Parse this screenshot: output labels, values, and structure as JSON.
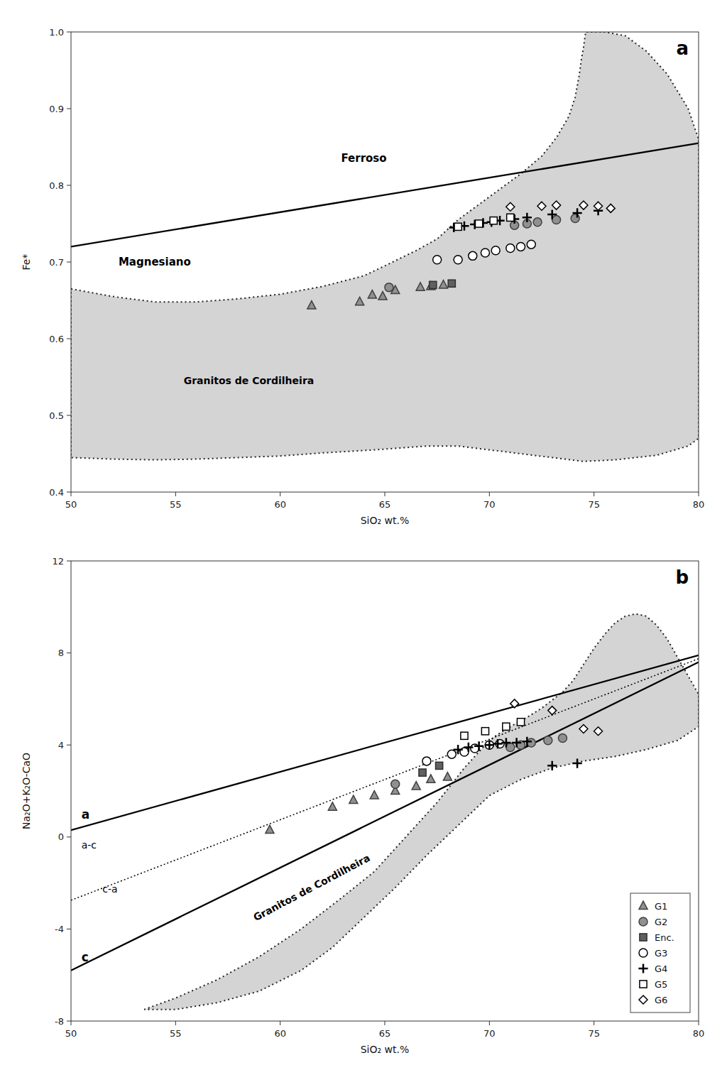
{
  "chart_data": [
    {
      "type": "scatter",
      "title": "a",
      "xlabel": "SiO₂ wt.%",
      "ylabel": "Fe*",
      "xlim": [
        50.0,
        80.0
      ],
      "ylim": [
        0.4,
        1.0
      ],
      "xticks": [
        50,
        55,
        60,
        65,
        70,
        75,
        80
      ],
      "yticks": [
        0.4,
        0.5,
        0.6,
        0.7,
        0.8,
        0.9,
        {
          "value": 1.0,
          "label": "1.0"
        }
      ],
      "grid": false,
      "regions": [
        {
          "name": "Granitos de Cordilheira",
          "label_x": 58.5,
          "label_y": 0.545,
          "color": "#d4d4d4",
          "line_style": "dotted",
          "points": [
            [
              50.0,
              0.665
            ],
            [
              52.0,
              0.655
            ],
            [
              54.0,
              0.648
            ],
            [
              56.0,
              0.648
            ],
            [
              58.0,
              0.652
            ],
            [
              60.0,
              0.658
            ],
            [
              62.0,
              0.668
            ],
            [
              64.0,
              0.682
            ],
            [
              65.0,
              0.695
            ],
            [
              66.5,
              0.715
            ],
            [
              67.5,
              0.73
            ],
            [
              68.5,
              0.755
            ],
            [
              69.5,
              0.775
            ],
            [
              70.5,
              0.795
            ],
            [
              71.5,
              0.815
            ],
            [
              72.5,
              0.838
            ],
            [
              73.2,
              0.862
            ],
            [
              73.8,
              0.89
            ],
            [
              74.1,
              0.915
            ],
            [
              74.3,
              0.945
            ],
            [
              74.4,
              0.965
            ],
            [
              74.5,
              0.98
            ],
            [
              74.6,
              1.0
            ],
            [
              75.5,
              1.0
            ],
            [
              76.5,
              0.995
            ],
            [
              77.5,
              0.975
            ],
            [
              78.5,
              0.945
            ],
            [
              79.5,
              0.9
            ],
            [
              80.0,
              0.86
            ],
            [
              80.0,
              0.47
            ],
            [
              80.0,
              0.47
            ],
            [
              79.5,
              0.46
            ],
            [
              78.0,
              0.448
            ],
            [
              76.0,
              0.442
            ],
            [
              74.5,
              0.44
            ],
            [
              73.0,
              0.445
            ],
            [
              71.5,
              0.45
            ],
            [
              70.0,
              0.455
            ],
            [
              68.5,
              0.46
            ],
            [
              67.0,
              0.46
            ],
            [
              64.5,
              0.455
            ],
            [
              62.0,
              0.451
            ],
            [
              60.0,
              0.447
            ],
            [
              58.0,
              0.445
            ],
            [
              56.0,
              0.443
            ],
            [
              54.0,
              0.442
            ],
            [
              52.0,
              0.443
            ],
            [
              50.0,
              0.445
            ]
          ]
        }
      ],
      "lines": [
        {
          "line_style": "solid",
          "points": [
            [
              50,
              0.72
            ],
            [
              80,
              0.855
            ]
          ]
        }
      ],
      "annotations": [
        {
          "text": "Ferroso",
          "x": 64.0,
          "y": 0.835
        },
        {
          "text": "Magnesiano",
          "x": 54.0,
          "y": 0.7
        }
      ],
      "series": [
        {
          "name": "G1",
          "marker": "triangle",
          "color": "#909090",
          "x": [
            61.5,
            63.8,
            64.4,
            64.9,
            65.5,
            66.7,
            67.2,
            67.8
          ],
          "values": [
            0.643,
            0.648,
            0.657,
            0.655,
            0.663,
            0.667,
            0.668,
            0.67
          ]
        },
        {
          "name": "G2",
          "marker": "circle",
          "color": "#909090",
          "x": [
            65.2,
            71.2,
            71.8,
            72.3,
            73.2,
            74.1
          ],
          "values": [
            0.667,
            0.748,
            0.75,
            0.752,
            0.755,
            0.757
          ]
        },
        {
          "name": "Enc.",
          "marker": "square",
          "color": "#606060",
          "x": [
            67.3,
            68.2
          ],
          "values": [
            0.67,
            0.672
          ]
        },
        {
          "name": "G3",
          "marker": "circle",
          "color": "#ffffff",
          "x": [
            67.5,
            68.5,
            69.2,
            69.8,
            70.3,
            71.0,
            71.5,
            72.0
          ],
          "values": [
            0.703,
            0.703,
            0.708,
            0.712,
            0.715,
            0.718,
            0.72,
            0.723
          ]
        },
        {
          "name": "G4",
          "marker": "plus",
          "color": "#000000",
          "x": [
            68.3,
            68.8,
            69.3,
            69.7,
            70.1,
            70.5,
            71.2,
            71.8,
            73.0,
            74.2,
            75.2
          ],
          "values": [
            0.745,
            0.747,
            0.749,
            0.751,
            0.752,
            0.754,
            0.756,
            0.758,
            0.762,
            0.764,
            0.767
          ]
        },
        {
          "name": "G5",
          "marker": "square",
          "color": "#ffffff",
          "x": [
            68.5,
            69.5,
            70.2,
            71.0
          ],
          "values": [
            0.746,
            0.75,
            0.754,
            0.758
          ]
        },
        {
          "name": "G6",
          "marker": "diamond",
          "color": "#ffffff",
          "x": [
            71.0,
            72.5,
            73.2,
            74.5,
            75.2,
            75.8
          ],
          "values": [
            0.772,
            0.773,
            0.774,
            0.774,
            0.773,
            0.77
          ]
        }
      ]
    },
    {
      "type": "scatter",
      "title": "b",
      "xlabel": "SiO₂ wt.%",
      "ylabel": "Na₂O+K₂O-CaO",
      "xlim": [
        50.0,
        80.0
      ],
      "ylim": [
        -8.0,
        12.0
      ],
      "xticks": [
        50,
        55,
        60,
        65,
        70,
        75,
        80
      ],
      "yticks": [
        -8,
        -4,
        0,
        4,
        8,
        12
      ],
      "grid": false,
      "legend": "lower right",
      "regions": [
        {
          "name": "Granitos de Cordilheira",
          "label_x": 61.5,
          "label_y": -2.2,
          "color": "#d4d4d4",
          "line_style": "dotted",
          "points": [
            [
              53.5,
              -7.5
            ],
            [
              55.0,
              -7.0
            ],
            [
              57.0,
              -6.2
            ],
            [
              59.0,
              -5.2
            ],
            [
              61.0,
              -4.0
            ],
            [
              63.0,
              -2.6
            ],
            [
              64.5,
              -1.5
            ],
            [
              65.5,
              -0.5
            ],
            [
              66.5,
              0.5
            ],
            [
              67.5,
              1.5
            ],
            [
              68.2,
              2.3
            ],
            [
              68.8,
              3.0
            ],
            [
              69.3,
              3.5
            ],
            [
              69.8,
              4.0
            ],
            [
              70.3,
              4.4
            ],
            [
              71.0,
              4.8
            ],
            [
              71.8,
              5.2
            ],
            [
              72.5,
              5.6
            ],
            [
              73.5,
              6.3
            ],
            [
              74.0,
              6.8
            ],
            [
              74.5,
              7.5
            ],
            [
              75.0,
              8.2
            ],
            [
              75.5,
              8.8
            ],
            [
              76.0,
              9.3
            ],
            [
              76.5,
              9.6
            ],
            [
              77.0,
              9.7
            ],
            [
              77.5,
              9.6
            ],
            [
              78.0,
              9.2
            ],
            [
              78.5,
              8.6
            ],
            [
              79.0,
              7.8
            ],
            [
              79.5,
              7.0
            ],
            [
              80.0,
              6.2
            ],
            [
              80.0,
              4.8
            ],
            [
              79.0,
              4.2
            ],
            [
              77.5,
              3.8
            ],
            [
              76.0,
              3.5
            ],
            [
              74.5,
              3.3
            ],
            [
              73.0,
              3.0
            ],
            [
              71.5,
              2.5
            ],
            [
              70.0,
              1.8
            ],
            [
              68.5,
              0.5
            ],
            [
              67.0,
              -0.8
            ],
            [
              65.5,
              -2.2
            ],
            [
              64.0,
              -3.5
            ],
            [
              62.5,
              -4.8
            ],
            [
              61.0,
              -5.8
            ],
            [
              59.0,
              -6.7
            ],
            [
              57.0,
              -7.2
            ],
            [
              55.0,
              -7.5
            ],
            [
              53.5,
              -7.5
            ]
          ]
        }
      ],
      "lines": [
        {
          "line_style": "solid",
          "points": [
            [
              50,
              0.3
            ],
            [
              80,
              7.9
            ]
          ]
        },
        {
          "line_style": "solid",
          "points": [
            [
              50,
              -5.8
            ],
            [
              80,
              7.6
            ]
          ]
        },
        {
          "line_style": "dotted",
          "points": [
            [
              50,
              -2.75
            ],
            [
              80,
              7.75
            ]
          ]
        }
      ],
      "annotations": [
        {
          "text": "a",
          "x": 50.5,
          "y": 0.7
        },
        {
          "text": "a-c",
          "x": 50.5,
          "y": -0.6
        },
        {
          "text": "c-a",
          "x": 51.5,
          "y": -2.5
        },
        {
          "text": "c",
          "x": 50.5,
          "y": -5.5
        }
      ],
      "series": [
        {
          "name": "G1",
          "marker": "triangle",
          "color": "#909090",
          "x": [
            59.5,
            62.5,
            63.5,
            64.5,
            65.5,
            66.5,
            67.2,
            68.0
          ],
          "values": [
            0.3,
            1.3,
            1.6,
            1.8,
            2.0,
            2.2,
            2.5,
            2.6
          ]
        },
        {
          "name": "G2",
          "marker": "circle",
          "color": "#909090",
          "x": [
            65.5,
            71.0,
            71.5,
            72.0,
            72.8,
            73.5
          ],
          "values": [
            2.3,
            3.9,
            4.0,
            4.1,
            4.2,
            4.3
          ]
        },
        {
          "name": "Enc.",
          "marker": "square",
          "color": "#606060",
          "x": [
            66.8,
            67.6
          ],
          "values": [
            2.8,
            3.1
          ]
        },
        {
          "name": "G3",
          "marker": "circle",
          "color": "#ffffff",
          "x": [
            67.0,
            68.2,
            68.8,
            69.3,
            70.0,
            70.5
          ],
          "values": [
            3.3,
            3.6,
            3.7,
            3.85,
            4.0,
            4.05
          ]
        },
        {
          "name": "G4",
          "marker": "plus",
          "color": "#000000",
          "x": [
            68.5,
            69.0,
            69.5,
            70.0,
            70.4,
            70.8,
            71.3,
            71.8,
            73.0,
            74.2
          ],
          "values": [
            3.8,
            3.9,
            3.95,
            4.0,
            4.05,
            4.1,
            4.1,
            4.15,
            3.1,
            3.2
          ]
        },
        {
          "name": "G5",
          "marker": "square",
          "color": "#ffffff",
          "x": [
            68.8,
            69.8,
            70.8,
            71.5
          ],
          "values": [
            4.4,
            4.6,
            4.8,
            5.0
          ]
        },
        {
          "name": "G6",
          "marker": "diamond",
          "color": "#ffffff",
          "x": [
            71.2,
            73.0,
            74.5,
            75.2
          ],
          "values": [
            5.8,
            5.5,
            4.7,
            4.6
          ]
        }
      ]
    }
  ]
}
